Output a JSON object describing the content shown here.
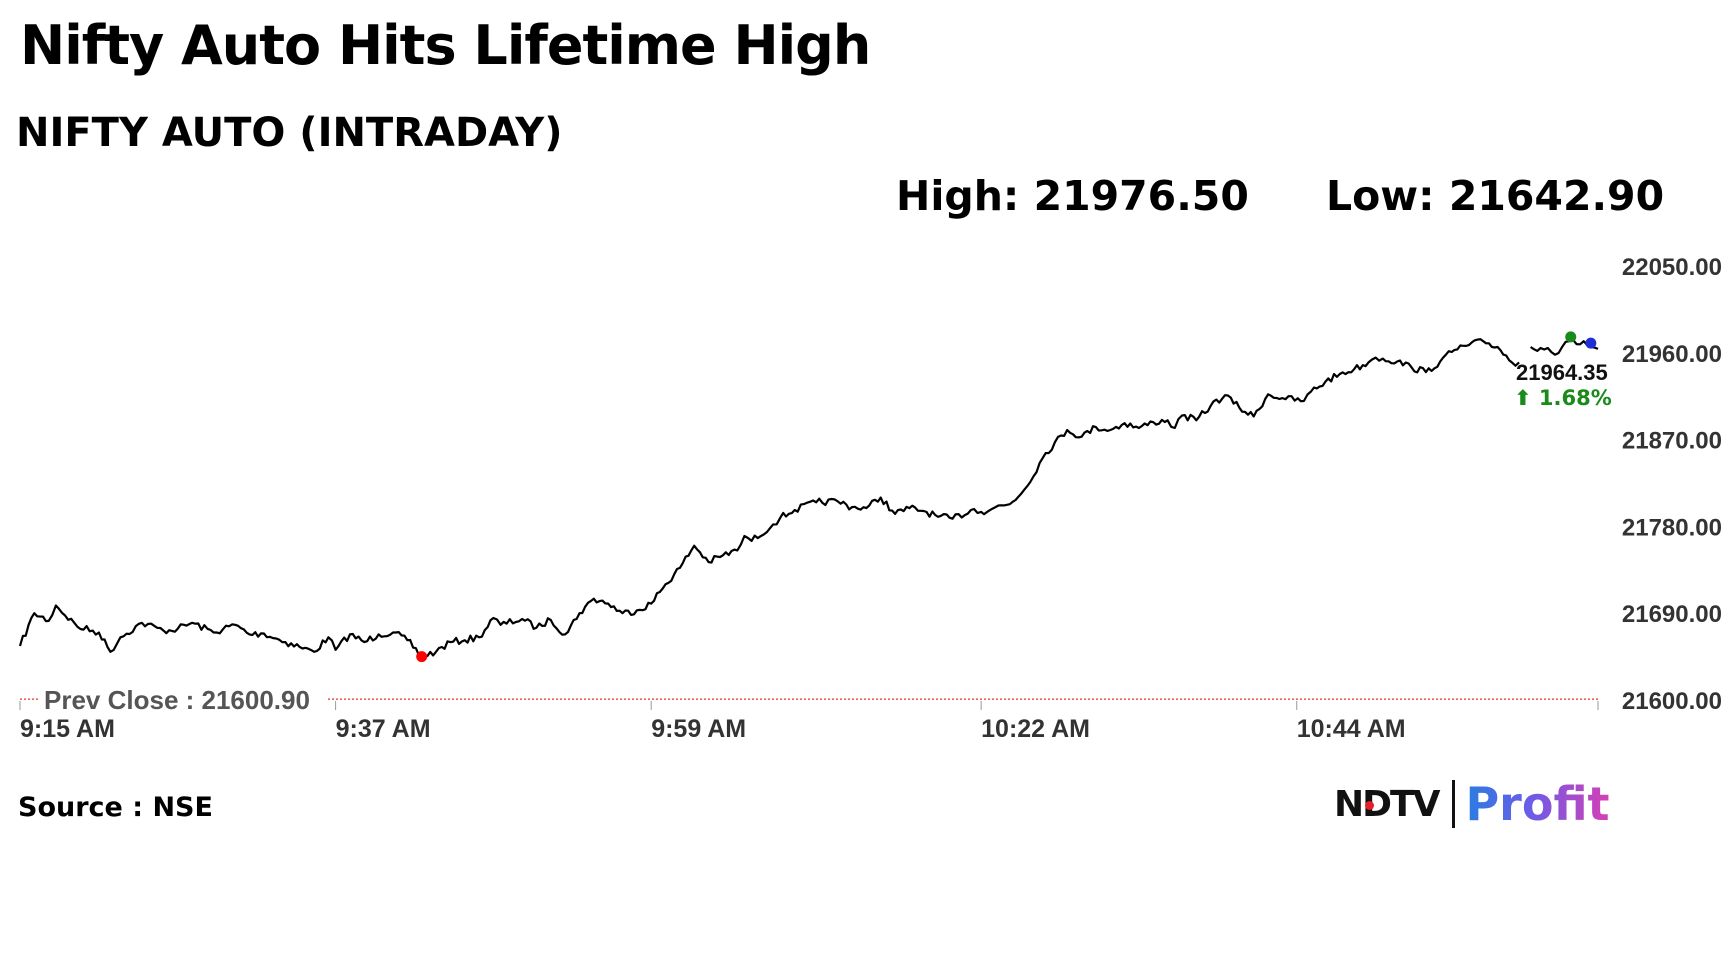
{
  "header": {
    "headline": "Nifty Auto Hits Lifetime High",
    "subtitle": "NIFTY AUTO (INTRADAY)",
    "high_text": "High: 21976.50",
    "low_text": "Low: 21642.90"
  },
  "footer": {
    "source": "Source : NSE",
    "logo_ndtv": "NDTV",
    "logo_profit": "Profit"
  },
  "colors": {
    "line": "#000000",
    "prev_close_line": "#e03030",
    "low_marker": "#ff0000",
    "high_marker": "#1a8a1a",
    "last_marker": "#1f2fd6",
    "change_up": "#1a8a1a",
    "axis_text": "#333333"
  },
  "chart_data": {
    "type": "line",
    "title": "NIFTY AUTO (INTRADAY)",
    "ylim": [
      21600,
      22050
    ],
    "y_ticks": [
      "22050.00",
      "21960.00",
      "21870.00",
      "21780.00",
      "21690.00",
      "21600.00"
    ],
    "y_tick_values": [
      22050,
      21960,
      21870,
      21780,
      21690,
      21600
    ],
    "x_ticks": [
      "9:15 AM",
      "9:37 AM",
      "9:59 AM",
      "10:22 AM",
      "10:44 AM"
    ],
    "x_tick_minutes": [
      555,
      577,
      599,
      622,
      644
    ],
    "x_range_minutes": [
      555,
      665
    ],
    "prev_close_label": "Prev Close : 21600.90",
    "prev_close": 21600.9,
    "last_value_label": "21964.35",
    "change_label": "⬆ 1.68%",
    "low_marker": {
      "time_min": 583,
      "value": 21645
    },
    "high_marker": {
      "time_min": 663.1,
      "value": 21976.5
    },
    "last_marker": {
      "time_min": 664.5,
      "value": 21970
    },
    "series": [
      {
        "x_min": [
          555.0,
          556.0,
          557.0,
          557.5,
          559.0,
          560.5,
          561.3,
          562.0,
          563.5,
          565.0,
          566.0,
          567.0,
          568.5,
          570.0,
          571.0,
          572.0,
          573.5,
          574.5,
          575.5,
          576.5,
          577.0,
          578.0,
          579.0,
          580.0,
          581.0,
          582.0,
          583.0,
          584.0,
          585.0,
          586.0,
          587.0,
          588.0,
          588.5,
          590.0,
          591.0,
          592.0,
          593.0,
          594.0,
          595.0,
          596.0,
          597.0,
          598.0,
          599.0,
          600.0,
          601.0,
          602.0,
          603.0,
          604.0,
          605.0,
          605.5,
          606.0,
          607.5,
          608.0,
          609.0,
          610.5,
          612.0,
          613.0,
          614.0,
          615.0,
          616.0,
          617.0,
          618.0,
          619.0,
          620.0,
          621.5,
          622.0,
          623.0,
          624.0,
          625.0,
          626.5,
          628.0,
          629.0,
          630.0,
          631.0,
          632.0,
          633.0,
          634.0,
          635.0,
          635.5,
          636.0,
          637.0,
          638.0,
          639.0,
          640.0,
          641.0,
          642.0,
          643.0,
          644.5,
          645.0,
          646.0,
          647.0,
          648.0,
          649.0,
          649.5,
          650.0,
          651.0,
          652.0,
          653.0,
          654.0,
          655.0,
          656.0,
          657.0,
          658.0,
          659.0,
          659.5
        ],
        "values": [
          21656,
          21690,
          21682,
          21698,
          21676,
          21670,
          21650,
          21665,
          21680,
          21672,
          21674,
          21680,
          21670,
          21678,
          21668,
          21669,
          21660,
          21655,
          21650,
          21665,
          21652,
          21668,
          21660,
          21668,
          21670,
          21662,
          21645,
          21650,
          21660,
          21662,
          21665,
          21685,
          21678,
          21684,
          21675,
          21683,
          21668,
          21690,
          21705,
          21700,
          21690,
          21693,
          21700,
          21720,
          21737,
          21760,
          21743,
          21750,
          21755,
          21770,
          21765,
          21782,
          21789,
          21797,
          21805,
          21806,
          21800,
          21799,
          21810,
          21793,
          21799,
          21796,
          21790,
          21788,
          21798,
          21795,
          21800,
          21803,
          21818,
          21856,
          21880,
          21873,
          21883,
          21880,
          21887,
          21882,
          21888,
          21890,
          21882,
          21895,
          21890,
          21905,
          21916,
          21903,
          21894,
          21917,
          21913,
          21910,
          21920,
          21930,
          21938,
          21943,
          21950,
          21955,
          21954,
          21951,
          21945,
          21940,
          21951,
          21963,
          21968,
          21972,
          21966,
          21950,
          21950
        ]
      },
      {
        "x_min": [
          660.3,
          661.0,
          661.5,
          662.0,
          662.5,
          663.0,
          663.5,
          664.0,
          664.5,
          665.0
        ],
        "values": [
          21966,
          21965,
          21965,
          21958,
          21966,
          21972,
          21969,
          21972,
          21966,
          21964
        ]
      }
    ]
  }
}
